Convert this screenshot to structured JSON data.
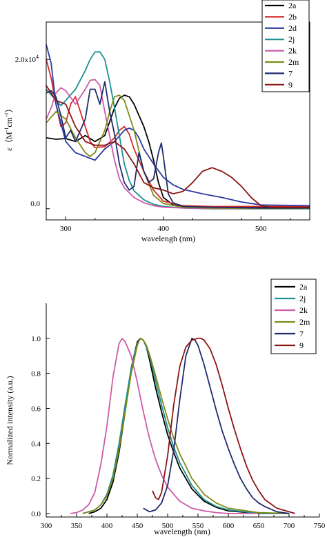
{
  "colors": {
    "2a": "#000000",
    "2b": "#d62728",
    "2d": "#2b3a9e",
    "2j": "#1a8f8f",
    "2k": "#cc5aa8",
    "2m": "#7f8a16",
    "7": "#1e2a6e",
    "9": "#8b1414"
  },
  "chart_data": [
    {
      "type": "line",
      "title": "",
      "xlabel": "wavelengh (nm)",
      "ylabel": "ε (M⁻¹cm⁻¹)",
      "ylabel_parts": {
        "eps": "ε",
        "unit_open": "（M",
        "sup1": "-1",
        "unit_mid": "cm",
        "sup2": "-1",
        "unit_close": "）"
      },
      "xlim": [
        280,
        550
      ],
      "ylim": [
        -1500,
        25000
      ],
      "xticks": [
        300,
        400,
        500
      ],
      "xtick_labels": [
        "300",
        "400",
        "500"
      ],
      "yticks": [
        0,
        20000
      ],
      "ytick_labels": [
        "0.0",
        "2.0x10⁴"
      ],
      "ytick_label_parts": [
        {
          "base": "0.0",
          "sup": ""
        },
        {
          "base": "2.0x10",
          "sup": "4"
        }
      ],
      "grid": false,
      "legend_placement": "top-right",
      "series": [
        {
          "name": "2a",
          "x": [
            280,
            290,
            300,
            310,
            320,
            330,
            340,
            350,
            355,
            360,
            365,
            370,
            375,
            380,
            385,
            390,
            395,
            400,
            410,
            420,
            450,
            500,
            550
          ],
          "y": [
            9500,
            9300,
            9400,
            9000,
            9800,
            9000,
            9800,
            13500,
            14800,
            15200,
            15000,
            14000,
            12500,
            11000,
            9000,
            6500,
            3500,
            1500,
            500,
            300,
            200,
            200,
            200
          ]
        },
        {
          "name": "2b",
          "x": [
            280,
            285,
            290,
            295,
            300,
            305,
            310,
            315,
            320,
            325,
            330,
            340,
            350,
            355,
            360,
            365,
            370,
            380,
            390,
            400,
            420,
            450,
            500,
            550
          ],
          "y": [
            20000,
            17500,
            14000,
            11000,
            11500,
            14000,
            15000,
            13000,
            11000,
            9000,
            8200,
            8300,
            9500,
            10500,
            11000,
            10000,
            8000,
            5000,
            2500,
            1000,
            400,
            300,
            300,
            300
          ]
        },
        {
          "name": "2d",
          "x": [
            280,
            285,
            290,
            300,
            310,
            320,
            330,
            340,
            350,
            360,
            365,
            370,
            375,
            380,
            390,
            400,
            410,
            420,
            440,
            460,
            480,
            500,
            550
          ],
          "y": [
            22000,
            19500,
            14000,
            9000,
            7500,
            7000,
            6500,
            8000,
            9000,
            10500,
            10800,
            10500,
            9500,
            8000,
            6000,
            4200,
            3200,
            2600,
            2000,
            1500,
            900,
            500,
            400
          ]
        },
        {
          "name": "2j",
          "x": [
            280,
            290,
            295,
            300,
            310,
            320,
            325,
            330,
            335,
            340,
            345,
            350,
            360,
            365,
            370,
            380,
            390,
            400,
            420,
            450,
            500,
            550
          ],
          "y": [
            16000,
            14500,
            13800,
            14500,
            16000,
            18500,
            20000,
            21000,
            21000,
            20000,
            17000,
            13500,
            6000,
            3800,
            2400,
            1200,
            600,
            300,
            100,
            0,
            0,
            0
          ]
        },
        {
          "name": "2k",
          "x": [
            280,
            285,
            290,
            295,
            300,
            310,
            320,
            325,
            330,
            335,
            340,
            350,
            355,
            360,
            370,
            380,
            390,
            400,
            420,
            450,
            500,
            550
          ],
          "y": [
            12000,
            13500,
            15500,
            16200,
            15800,
            14000,
            16000,
            17200,
            17300,
            16500,
            13000,
            6500,
            4000,
            2800,
            1500,
            800,
            400,
            200,
            100,
            50,
            50,
            50
          ]
        },
        {
          "name": "2m",
          "x": [
            280,
            290,
            300,
            310,
            320,
            325,
            330,
            340,
            345,
            350,
            355,
            360,
            365,
            370,
            380,
            390,
            400,
            420,
            450,
            500,
            550
          ],
          "y": [
            11500,
            13000,
            12000,
            9500,
            7500,
            7000,
            7500,
            10500,
            13000,
            15000,
            15200,
            14500,
            12500,
            10500,
            5000,
            1800,
            700,
            200,
            100,
            50,
            50
          ]
        },
        {
          "name": "7",
          "x": [
            280,
            285,
            290,
            295,
            300,
            305,
            310,
            320,
            325,
            330,
            335,
            340,
            345,
            350,
            355,
            360,
            365,
            370,
            375,
            380,
            385,
            390,
            395,
            398,
            400,
            405,
            410,
            420,
            450,
            500,
            550
          ],
          "y": [
            15500,
            15800,
            15000,
            12500,
            9500,
            10500,
            9000,
            12000,
            16000,
            16000,
            14000,
            17000,
            13000,
            10000,
            6000,
            3500,
            2500,
            3000,
            7500,
            5000,
            3500,
            4000,
            7500,
            8800,
            7000,
            2000,
            800,
            300,
            200,
            100,
            100
          ]
        },
        {
          "name": "9",
          "x": [
            280,
            290,
            300,
            310,
            320,
            330,
            340,
            350,
            360,
            370,
            380,
            390,
            400,
            410,
            420,
            430,
            440,
            450,
            460,
            470,
            480,
            490,
            500,
            510,
            550
          ],
          "y": [
            16500,
            14500,
            14000,
            11000,
            9000,
            8500,
            8500,
            9000,
            8000,
            6000,
            3500,
            2800,
            2500,
            2000,
            2300,
            3500,
            5000,
            5500,
            5000,
            4200,
            3000,
            1500,
            400,
            200,
            200
          ]
        }
      ]
    },
    {
      "type": "line",
      "title": "",
      "xlabel": "wavelength (nm)",
      "ylabel": "Normalized intensity (a.u.)",
      "xlim": [
        300,
        750
      ],
      "ylim": [
        -0.02,
        1.2
      ],
      "xticks": [
        300,
        350,
        400,
        450,
        500,
        550,
        600,
        650,
        700,
        750
      ],
      "xtick_labels": [
        "300",
        "350",
        "400",
        "450",
        "500",
        "550",
        "600",
        "650",
        "700",
        "750"
      ],
      "yticks": [
        0.0,
        0.2,
        0.4,
        0.6,
        0.8,
        1.0
      ],
      "ytick_labels": [
        "0.0",
        "0.2",
        "0.4",
        "0.6",
        "0.8",
        "1.0"
      ],
      "grid": false,
      "legend_placement": "top-right",
      "series": [
        {
          "name": "2a",
          "x": [
            370,
            380,
            390,
            400,
            410,
            420,
            430,
            440,
            450,
            455,
            460,
            465,
            470,
            480,
            490,
            500,
            510,
            520,
            540,
            560,
            580,
            600,
            650,
            700
          ],
          "y": [
            0,
            0.01,
            0.03,
            0.08,
            0.18,
            0.35,
            0.58,
            0.83,
            0.98,
            1.0,
            0.99,
            0.95,
            0.88,
            0.72,
            0.58,
            0.45,
            0.35,
            0.26,
            0.14,
            0.07,
            0.035,
            0.015,
            0,
            0
          ]
        },
        {
          "name": "2j",
          "x": [
            360,
            370,
            380,
            390,
            400,
            410,
            420,
            430,
            440,
            450,
            455,
            460,
            465,
            470,
            480,
            490,
            500,
            510,
            520,
            540,
            560,
            580,
            600,
            650,
            700
          ],
          "y": [
            0,
            0.01,
            0.02,
            0.05,
            0.11,
            0.22,
            0.4,
            0.62,
            0.83,
            0.97,
            1.0,
            0.99,
            0.95,
            0.9,
            0.76,
            0.62,
            0.49,
            0.38,
            0.29,
            0.16,
            0.08,
            0.04,
            0.02,
            0,
            0
          ]
        },
        {
          "name": "2k",
          "x": [
            340,
            350,
            360,
            370,
            380,
            390,
            400,
            410,
            420,
            425,
            430,
            440,
            450,
            460,
            470,
            480,
            490,
            500,
            520,
            540,
            560,
            580,
            600,
            650
          ],
          "y": [
            0,
            0.005,
            0.02,
            0.05,
            0.12,
            0.28,
            0.5,
            0.78,
            0.97,
            1.0,
            0.98,
            0.9,
            0.75,
            0.58,
            0.43,
            0.31,
            0.22,
            0.15,
            0.07,
            0.03,
            0.015,
            0.005,
            0,
            0
          ]
        },
        {
          "name": "2m",
          "x": [
            360,
            370,
            380,
            390,
            400,
            410,
            420,
            430,
            440,
            450,
            455,
            460,
            465,
            470,
            480,
            490,
            500,
            510,
            520,
            540,
            560,
            580,
            600,
            650,
            700
          ],
          "y": [
            0,
            0.01,
            0.02,
            0.05,
            0.1,
            0.2,
            0.37,
            0.58,
            0.8,
            0.96,
            1.0,
            0.99,
            0.96,
            0.91,
            0.79,
            0.66,
            0.54,
            0.43,
            0.34,
            0.2,
            0.11,
            0.06,
            0.03,
            0.005,
            0
          ]
        },
        {
          "name": "7",
          "x": [
            460,
            470,
            480,
            490,
            500,
            510,
            520,
            530,
            540,
            545,
            550,
            560,
            570,
            580,
            590,
            600,
            610,
            620,
            630,
            640,
            650,
            660,
            680,
            700
          ],
          "y": [
            0.03,
            0.01,
            0.02,
            0.06,
            0.16,
            0.36,
            0.65,
            0.9,
            1.0,
            0.99,
            0.96,
            0.85,
            0.72,
            0.59,
            0.47,
            0.37,
            0.28,
            0.2,
            0.14,
            0.09,
            0.06,
            0.04,
            0.01,
            0
          ]
        },
        {
          "name": "9",
          "x": [
            475,
            480,
            485,
            490,
            500,
            510,
            520,
            530,
            540,
            550,
            555,
            560,
            570,
            580,
            590,
            600,
            610,
            620,
            630,
            640,
            650,
            660,
            680,
            700,
            710
          ],
          "y": [
            0.13,
            0.09,
            0.08,
            0.12,
            0.33,
            0.62,
            0.84,
            0.95,
            0.99,
            1.0,
            1.0,
            0.99,
            0.94,
            0.85,
            0.73,
            0.6,
            0.48,
            0.37,
            0.27,
            0.19,
            0.13,
            0.08,
            0.03,
            0.01,
            0
          ]
        }
      ]
    }
  ]
}
